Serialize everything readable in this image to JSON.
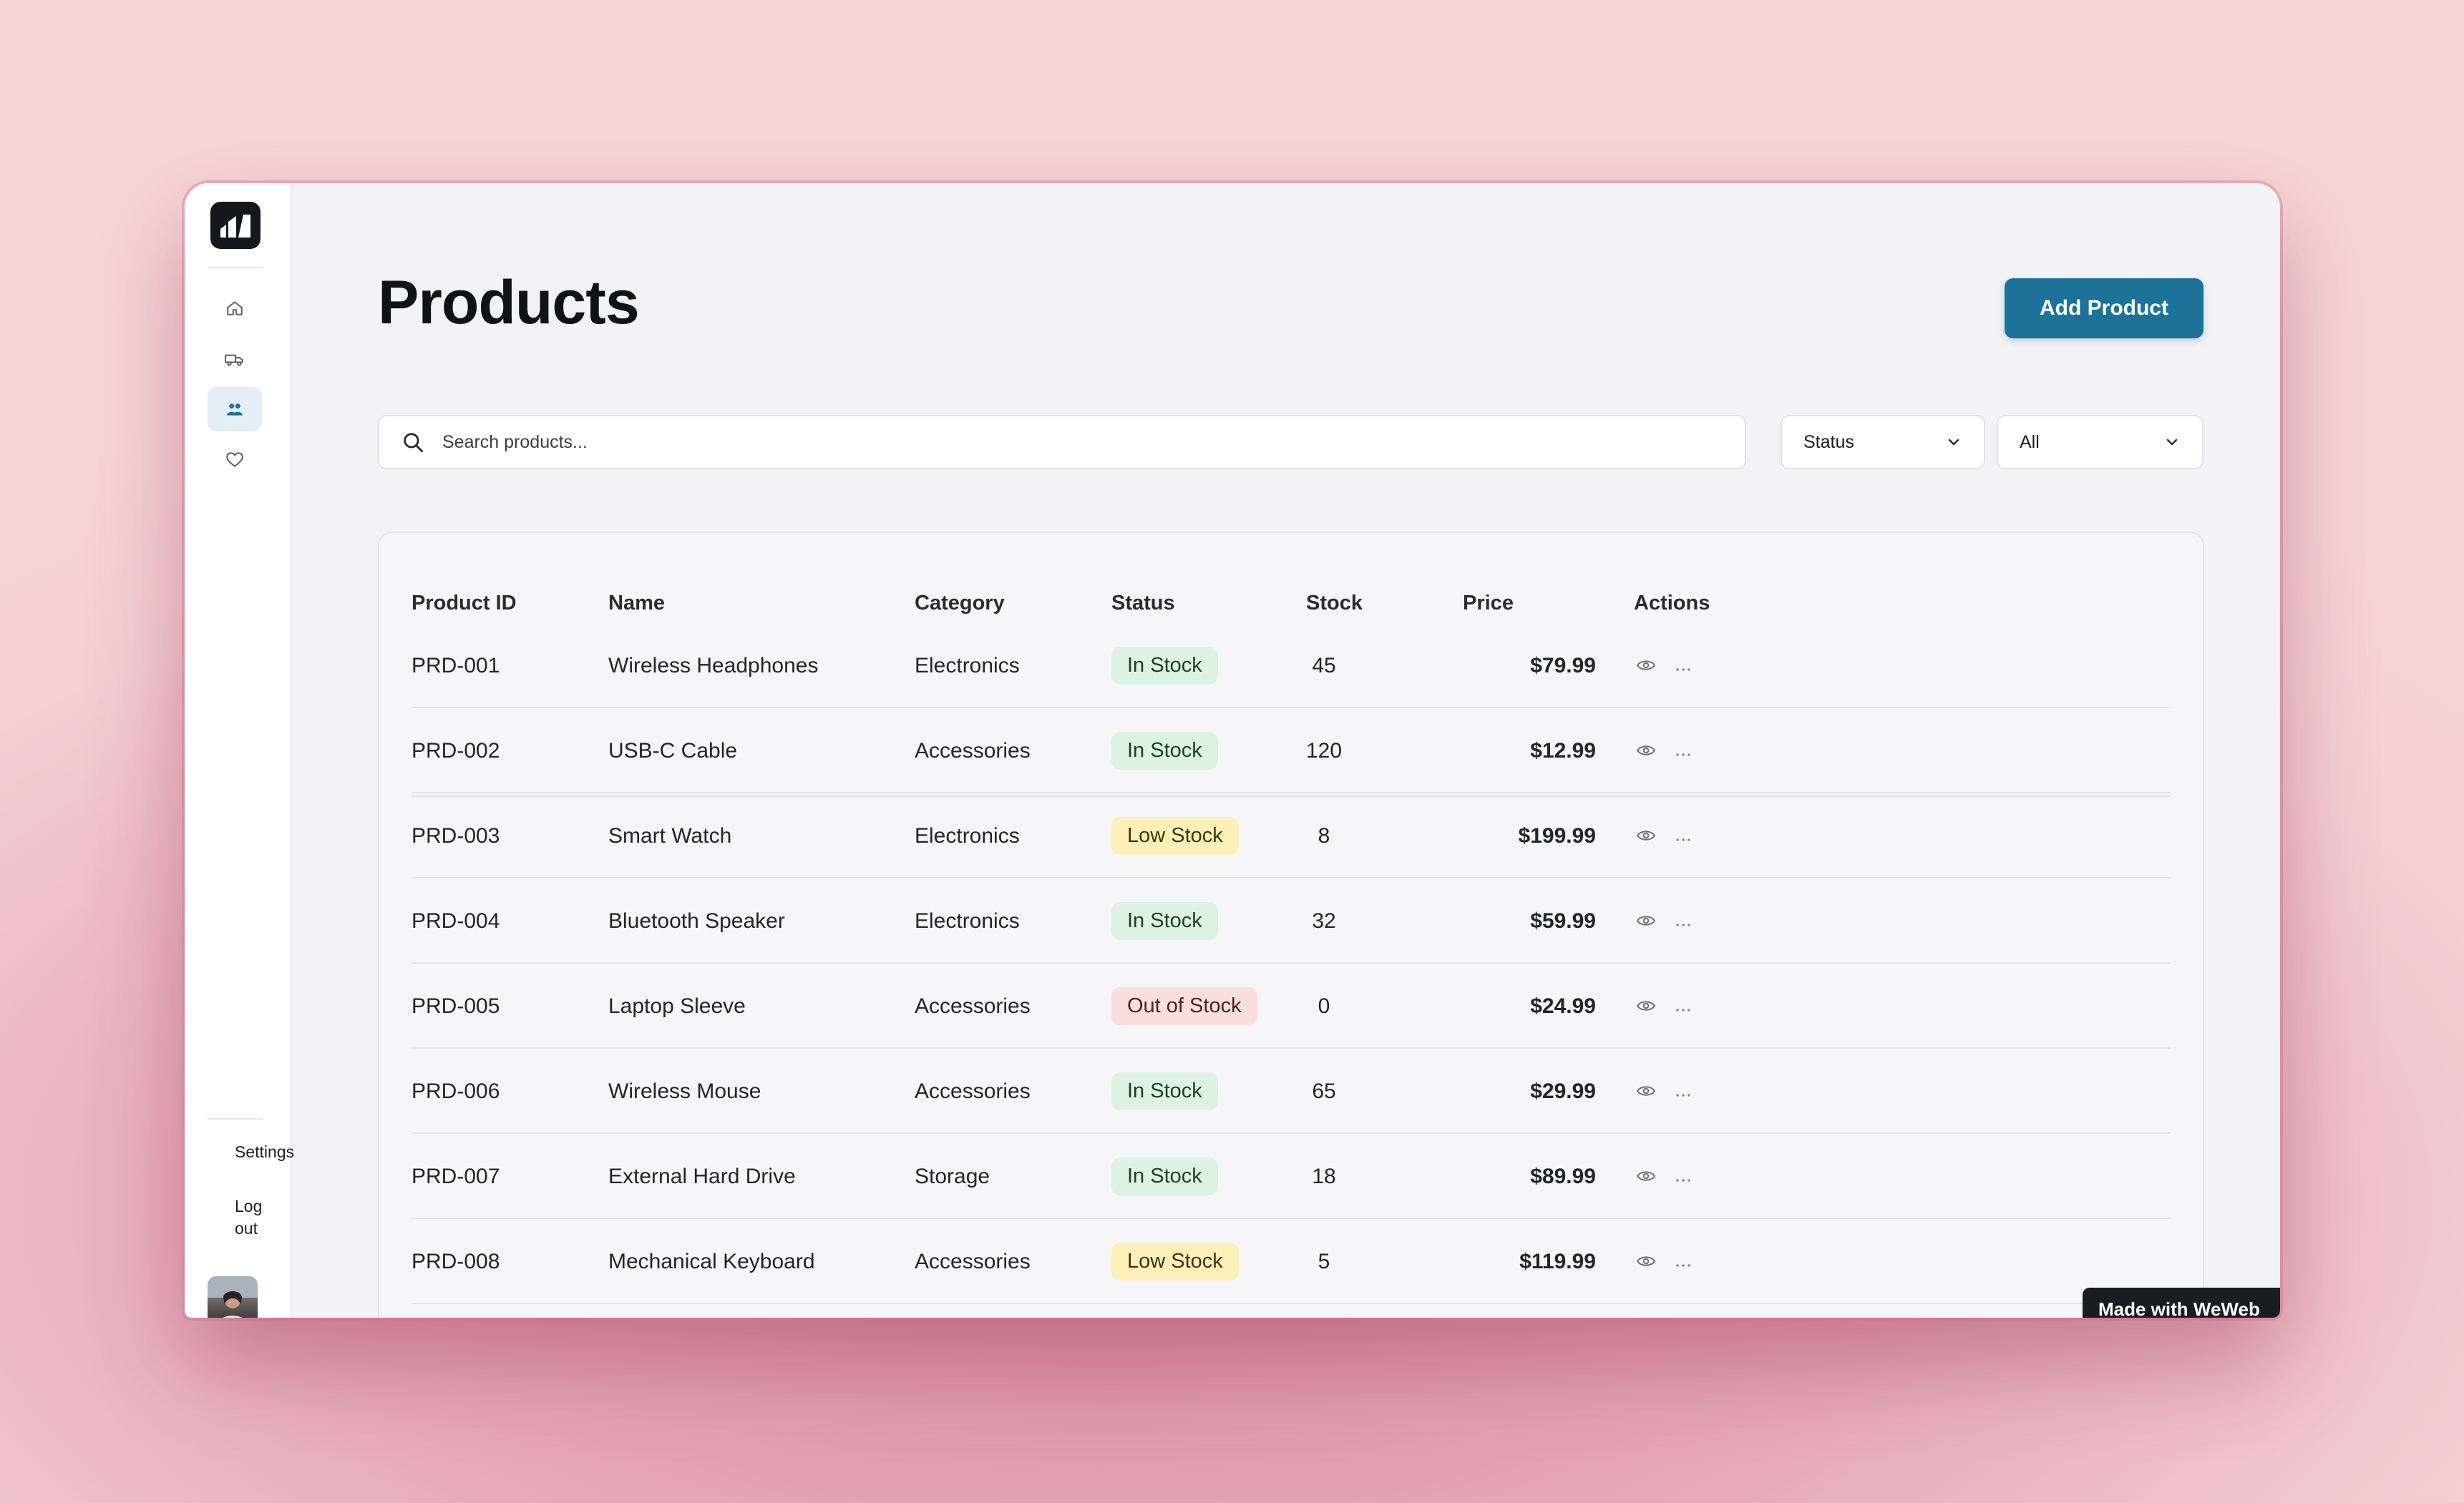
{
  "sidebar": {
    "nav": [
      {
        "icon": "home-icon",
        "active": false
      },
      {
        "icon": "truck-icon",
        "active": false
      },
      {
        "icon": "users-icon",
        "active": true
      },
      {
        "icon": "heart-icon",
        "active": false
      }
    ],
    "settings_label": "Settings",
    "logout_label": "Log out"
  },
  "header": {
    "title": "Products",
    "add_button_label": "Add Product"
  },
  "filters": {
    "search_placeholder": "Search products...",
    "status_label": "Status",
    "value_label": "All"
  },
  "table": {
    "columns": [
      "Product ID",
      "Name",
      "Category",
      "Status",
      "Stock",
      "Price",
      "Actions"
    ],
    "rows": [
      {
        "id": "PRD-001",
        "name": "Wireless Headphones",
        "category": "Electronics",
        "status": "In Stock",
        "stock": "45",
        "price": "$79.99"
      },
      {
        "id": "PRD-002",
        "name": "USB-C Cable",
        "category": "Accessories",
        "status": "In Stock",
        "stock": "120",
        "price": "$12.99"
      },
      {
        "id": "PRD-003",
        "name": "Smart Watch",
        "category": "Electronics",
        "status": "Low Stock",
        "stock": "8",
        "price": "$199.99"
      },
      {
        "id": "PRD-004",
        "name": "Bluetooth Speaker",
        "category": "Electronics",
        "status": "In Stock",
        "stock": "32",
        "price": "$59.99"
      },
      {
        "id": "PRD-005",
        "name": "Laptop Sleeve",
        "category": "Accessories",
        "status": "Out of Stock",
        "stock": "0",
        "price": "$24.99"
      },
      {
        "id": "PRD-006",
        "name": "Wireless Mouse",
        "category": "Accessories",
        "status": "In Stock",
        "stock": "65",
        "price": "$29.99"
      },
      {
        "id": "PRD-007",
        "name": "External Hard Drive",
        "category": "Storage",
        "status": "In Stock",
        "stock": "18",
        "price": "$89.99"
      },
      {
        "id": "PRD-008",
        "name": "Mechanical Keyboard",
        "category": "Accessories",
        "status": "Low Stock",
        "stock": "5",
        "price": "$119.99"
      }
    ]
  },
  "status_colors": {
    "In Stock": {
      "bg": "#dcf3e2",
      "fg": "#1f3f28"
    },
    "Low Stock": {
      "bg": "#fbf1b8",
      "fg": "#3e3510"
    },
    "Out of Stock": {
      "bg": "#fbdede",
      "fg": "#4a2222"
    }
  },
  "accent_color": "#1d7299",
  "badge_label": "Made with WeWeb"
}
